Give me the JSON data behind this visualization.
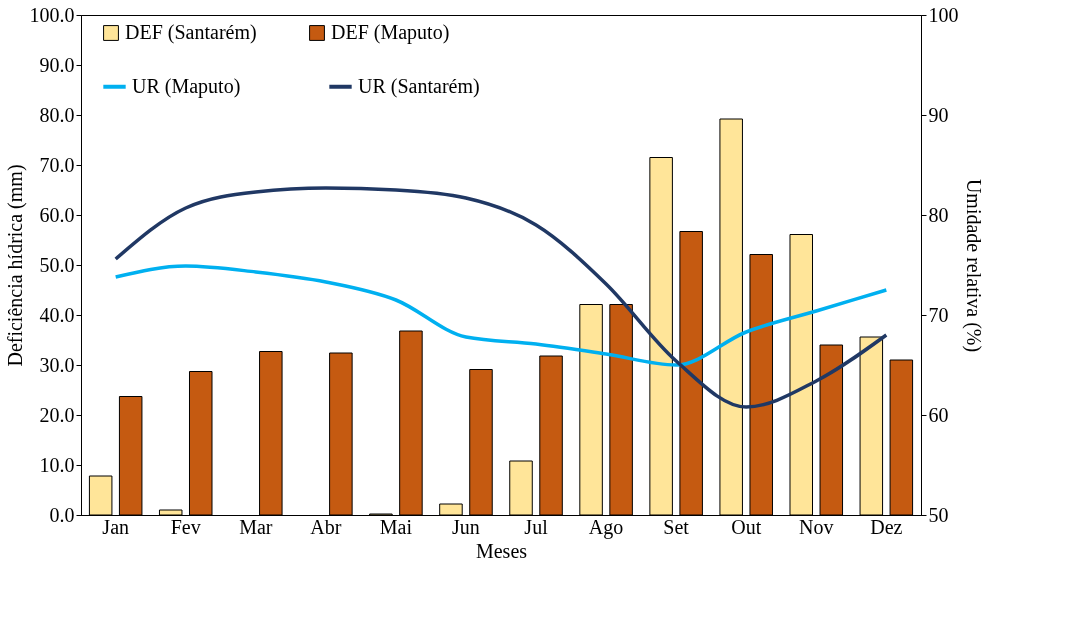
{
  "chart_data": {
    "type": "bar",
    "xlabel": "Meses",
    "ylabel": "Deficiência hídrica (mm)",
    "y2label": "Umidade relativa (%)",
    "categories": [
      "Jan",
      "Fev",
      "Mar",
      "Abr",
      "Mai",
      "Jun",
      "Jul",
      "Ago",
      "Set",
      "Out",
      "Nov",
      "Dez"
    ],
    "series": [
      {
        "name": "DEF (Santarém)",
        "color": "#ffe599",
        "values": [
          7.8,
          1.0,
          0,
          0,
          0.2,
          2.2,
          10.8,
          42.1,
          71.5,
          79.2,
          56.1,
          35.6
        ]
      },
      {
        "name": "DEF (Maputo)",
        "color": "#c55a11",
        "values": [
          23.7,
          28.7,
          32.7,
          32.4,
          36.8,
          29.1,
          31.8,
          42.1,
          56.7,
          52.1,
          34.0,
          31.0
        ]
      },
      {
        "name": "UR (Maputo)",
        "type": "line",
        "axis": "y2",
        "color": "#00b0f0",
        "values": [
          73.8,
          74.9,
          74.3,
          73.3,
          71.5,
          67.8,
          67.1,
          66.1,
          65.0,
          68.3,
          70.4,
          72.5
        ]
      },
      {
        "name": "UR (Santarém)",
        "type": "line",
        "axis": "y2",
        "color": "#203864",
        "values": [
          75.6,
          80.7,
          82.3,
          82.7,
          82.5,
          81.7,
          79.0,
          73.1,
          65.4,
          60.8,
          63.4,
          68.0
        ]
      }
    ],
    "ylim": [
      0,
      100
    ],
    "yticks": [
      {
        "value": 0,
        "label": "0.0"
      },
      {
        "value": 10,
        "label": "10.0"
      },
      {
        "value": 20,
        "label": "20.0"
      },
      {
        "value": 30,
        "label": "30.0"
      },
      {
        "value": 40,
        "label": "40.0"
      },
      {
        "value": 50,
        "label": "50.0"
      },
      {
        "value": 60,
        "label": "60.0"
      },
      {
        "value": 70,
        "label": "70.0"
      },
      {
        "value": 80,
        "label": "80.0"
      },
      {
        "value": 90,
        "label": "90.0"
      },
      {
        "value": 100,
        "label": "100.0"
      }
    ],
    "y2lim": [
      50,
      100
    ],
    "y2ticks": [
      50,
      60,
      70,
      80,
      90,
      100
    ],
    "legend": "top",
    "grid": false,
    "marker": "none",
    "line_style": "solid"
  }
}
